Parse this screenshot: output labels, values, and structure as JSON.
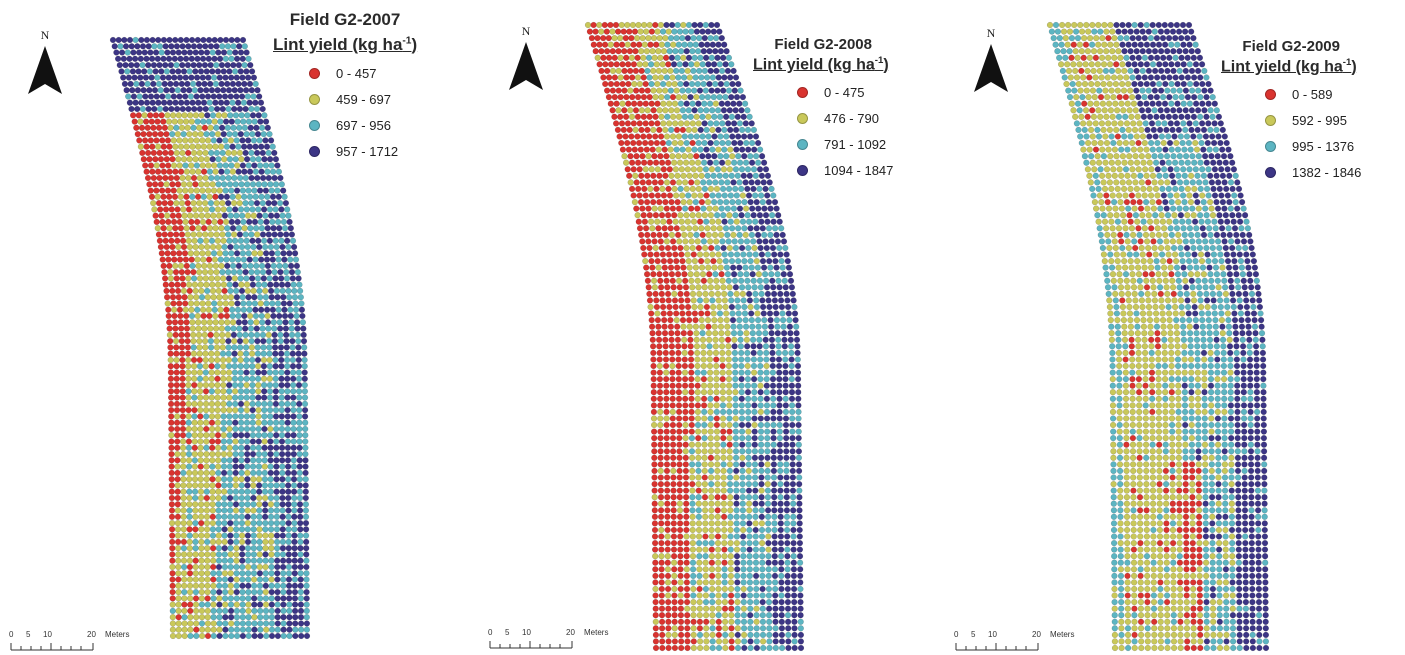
{
  "north_letter": "N",
  "unit_superscript": "-1",
  "scale_bar": {
    "ticks": [
      "0",
      "5",
      "10",
      "20"
    ],
    "unit": "Meters"
  },
  "colors": {
    "red": "#d9332f",
    "yellow": "#c9c85a",
    "cyan": "#5cb5c2",
    "navy": "#3c3585"
  },
  "panels": [
    {
      "title": "Field G2-2007",
      "legend_heading": "Lint yield (kg ha",
      "classes": [
        {
          "range": "0 - 457",
          "color": "#d9332f"
        },
        {
          "range": "459 - 697",
          "color": "#c9c85a"
        },
        {
          "range": "697 - 956",
          "color": "#5cb5c2"
        },
        {
          "range": "957 - 1712",
          "color": "#3c3585"
        }
      ]
    },
    {
      "title": "Field G2-2008",
      "legend_heading": "Lint yield (kg ha",
      "classes": [
        {
          "range": "0 - 475",
          "color": "#d9332f"
        },
        {
          "range": "476 - 790",
          "color": "#c9c85a"
        },
        {
          "range": "791 - 1092",
          "color": "#5cb5c2"
        },
        {
          "range": "1094 - 1847",
          "color": "#3c3585"
        }
      ]
    },
    {
      "title": "Field G2-2009",
      "legend_heading": "Lint yield (kg ha",
      "classes": [
        {
          "range": "0 - 589",
          "color": "#d9332f"
        },
        {
          "range": "592 - 995",
          "color": "#c9c85a"
        },
        {
          "range": "995 - 1376",
          "color": "#5cb5c2"
        },
        {
          "range": "1382 - 1846",
          "color": "#3c3585"
        }
      ]
    }
  ]
}
